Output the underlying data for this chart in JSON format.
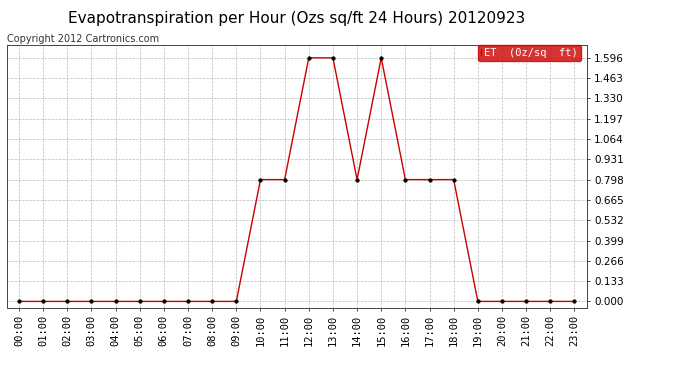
{
  "title": "Evapotranspiration per Hour (Ozs sq/ft 24 Hours) 20120923",
  "copyright": "Copyright 2012 Cartronics.com",
  "legend_label": "ET  (0z/sq  ft)",
  "x_labels": [
    "00:00",
    "01:00",
    "02:00",
    "03:00",
    "04:00",
    "05:00",
    "06:00",
    "07:00",
    "08:00",
    "09:00",
    "10:00",
    "11:00",
    "12:00",
    "13:00",
    "14:00",
    "15:00",
    "16:00",
    "17:00",
    "18:00",
    "19:00",
    "20:00",
    "21:00",
    "22:00",
    "23:00"
  ],
  "hours": [
    0,
    1,
    2,
    3,
    4,
    5,
    6,
    7,
    8,
    9,
    10,
    11,
    12,
    13,
    14,
    15,
    16,
    17,
    18,
    19,
    20,
    21,
    22,
    23
  ],
  "values": [
    0.0,
    0.0,
    0.0,
    0.0,
    0.0,
    0.0,
    0.0,
    0.0,
    0.0,
    0.0,
    0.798,
    0.798,
    1.596,
    1.596,
    0.798,
    1.596,
    0.798,
    0.798,
    0.798,
    0.0,
    0.0,
    0.0,
    0.0,
    0.0
  ],
  "y_ticks": [
    0.0,
    0.133,
    0.266,
    0.399,
    0.532,
    0.665,
    0.798,
    0.931,
    1.064,
    1.197,
    1.33,
    1.463,
    1.596
  ],
  "line_color": "#cc0000",
  "marker_color": "#000000",
  "grid_color": "#bbbbbb",
  "background_color": "#ffffff",
  "legend_bg": "#cc0000",
  "legend_text_color": "#ffffff",
  "title_fontsize": 11,
  "copyright_fontsize": 7,
  "tick_fontsize": 7.5,
  "legend_fontsize": 7.5,
  "ylim": [
    -0.04,
    1.68
  ],
  "xlim": [
    -0.5,
    23.5
  ]
}
